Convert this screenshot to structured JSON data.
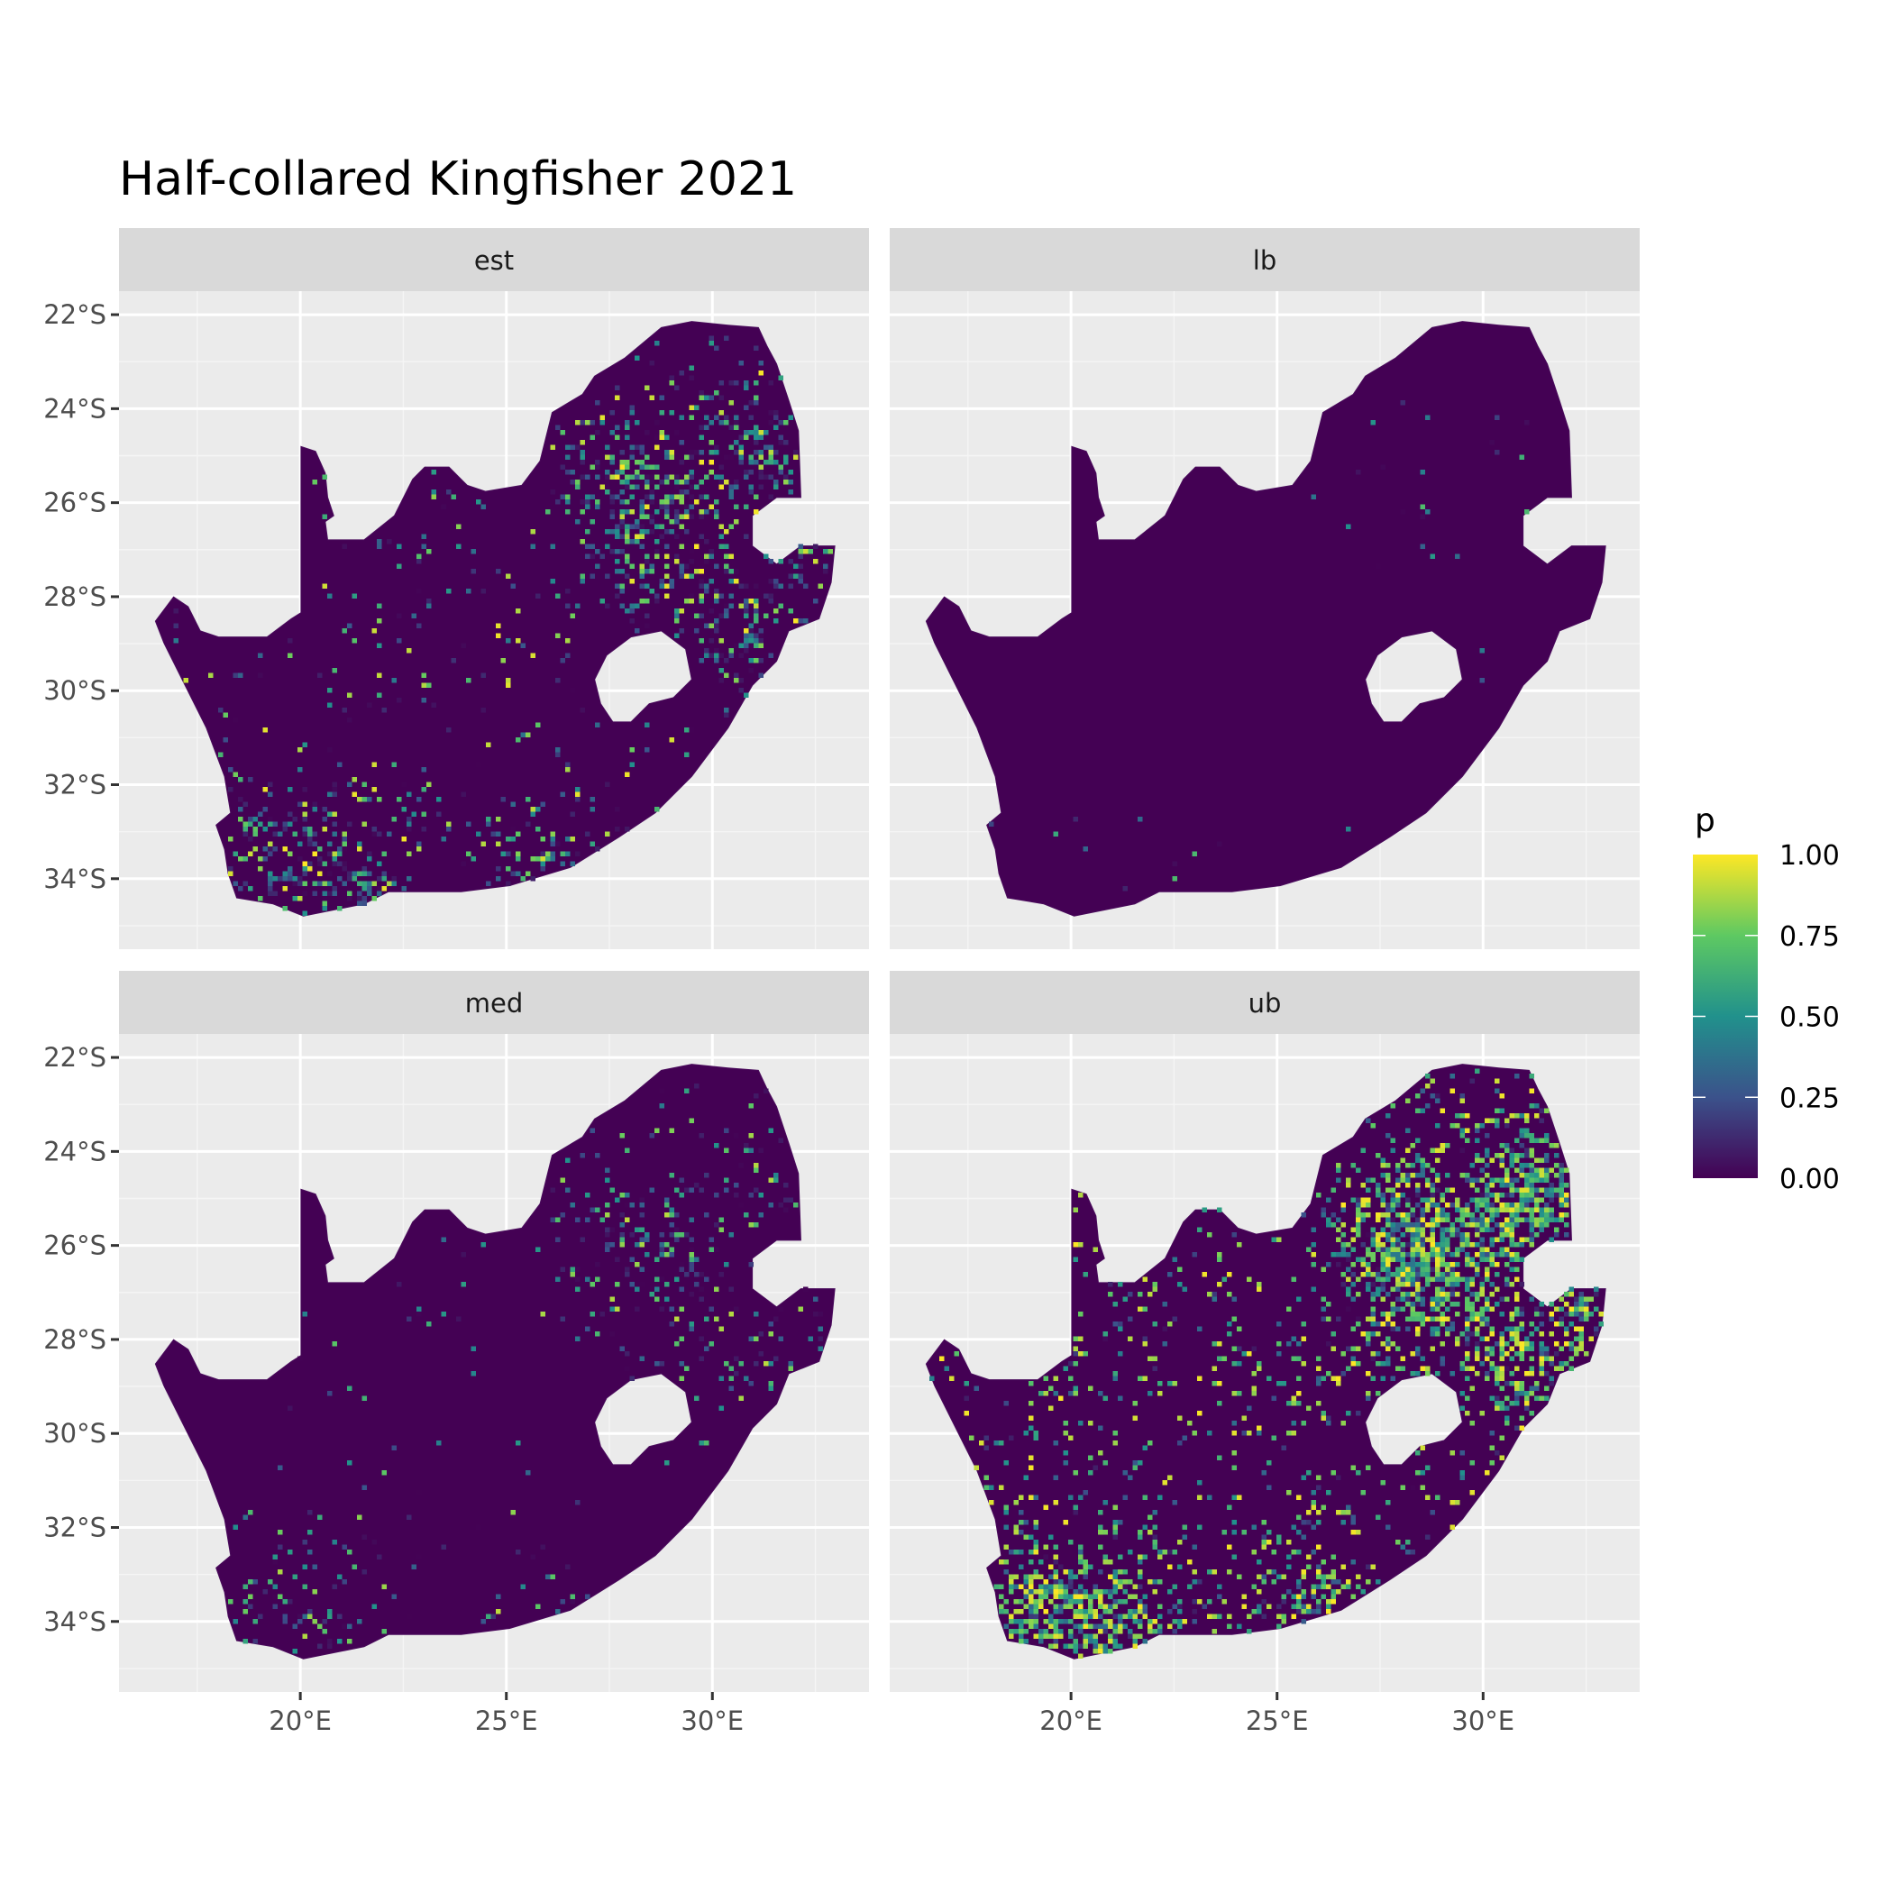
{
  "chart_data": {
    "type": "heatmap",
    "title": "Half-collared Kingfisher 2021",
    "panels": [
      {
        "label": "est"
      },
      {
        "label": "lb"
      },
      {
        "label": "med"
      },
      {
        "label": "ub"
      }
    ],
    "x_ticks": [
      "20°E",
      "25°E",
      "30°E"
    ],
    "x_tick_values": [
      20,
      25,
      30
    ],
    "y_ticks": [
      "22°S",
      "24°S",
      "26°S",
      "28°S",
      "30°S",
      "32°S",
      "34°S"
    ],
    "y_tick_values": [
      -22,
      -24,
      -26,
      -28,
      -30,
      -32,
      -34
    ],
    "xlim": [
      15.6,
      33.8
    ],
    "ylim": [
      -35.5,
      -21.5
    ],
    "grid": true,
    "legend": {
      "title": "p",
      "placement": "right",
      "ticks": [
        "1.00",
        "0.75",
        "0.50",
        "0.25",
        "0.00"
      ],
      "range": [
        0,
        1
      ],
      "colormap": "viridis",
      "colors": [
        "#440154",
        "#3b528b",
        "#21918c",
        "#5ec962",
        "#fde725"
      ]
    },
    "panel_background": "#ebebeb",
    "strip_background": "#d9d9d9"
  }
}
